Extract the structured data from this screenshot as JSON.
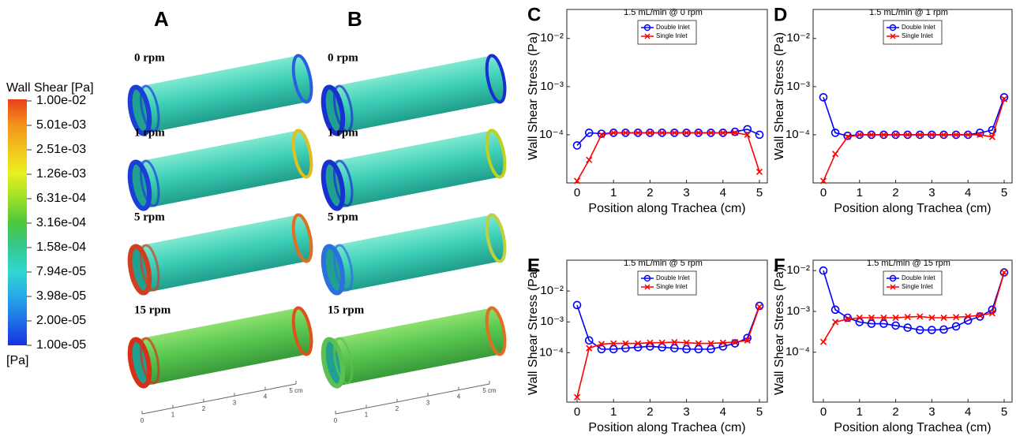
{
  "colorbar": {
    "title": "Wall Shear [Pa]",
    "labels": [
      "1.00e-02",
      "5.01e-03",
      "2.51e-03",
      "1.26e-03",
      "6.31e-04",
      "3.16e-04",
      "1.58e-04",
      "7.94e-05",
      "3.98e-05",
      "2.00e-05",
      "1.00e-05"
    ],
    "unit": "[Pa]"
  },
  "panels": [
    {
      "letter": "A",
      "rows": [
        "0 rpm",
        "1 rpm",
        "5 rpm",
        "15 rpm"
      ],
      "ruler": [
        "0",
        "1",
        "2",
        "3",
        "4",
        "5 cm"
      ]
    },
    {
      "letter": "B",
      "rows": [
        "0 rpm",
        "1 rpm",
        "5 rpm",
        "15 rpm"
      ],
      "ruler": [
        "0",
        "1",
        "2",
        "3",
        "4",
        "5 cm"
      ]
    }
  ],
  "chart_data": [
    {
      "type": "line",
      "panel": "C",
      "title": "1.5 mL/min @ 0 rpm",
      "xlabel": "Position along Trachea (cm)",
      "ylabel": "Wall Shear Stress (Pa)",
      "log_y": true,
      "legend": "upper center",
      "x": [
        0,
        0.33,
        0.67,
        1,
        1.33,
        1.67,
        2,
        2.33,
        2.67,
        3,
        3.33,
        3.67,
        4,
        4.33,
        4.67,
        5
      ],
      "xlim": [
        0,
        5
      ],
      "xticks": [
        0,
        1,
        2,
        3,
        4,
        5
      ],
      "ylim": [
        1e-05,
        0.04
      ],
      "yticks": [
        {
          "value": 0.01,
          "label": "10⁻²"
        },
        {
          "value": 0.001,
          "label": "10⁻³"
        },
        {
          "value": 0.0001,
          "label": "10⁻⁴"
        }
      ],
      "series": [
        {
          "name": "Double Inlet",
          "color": "#0000ff",
          "marker": "circle",
          "values": [
            6e-05,
            0.00011,
            0.000105,
            0.00011,
            0.00011,
            0.00011,
            0.00011,
            0.00011,
            0.00011,
            0.00011,
            0.00011,
            0.00011,
            0.00011,
            0.000115,
            0.00013,
            0.0001
          ]
        },
        {
          "name": "Single Inlet",
          "color": "#ff0000",
          "marker": "x",
          "values": [
            1.1e-05,
            3e-05,
            0.0001,
            0.00011,
            0.00011,
            0.00011,
            0.00011,
            0.00011,
            0.00011,
            0.00011,
            0.00011,
            0.00011,
            0.00011,
            0.00011,
            0.0001,
            1.7e-05
          ]
        }
      ]
    },
    {
      "type": "line",
      "panel": "D",
      "title": "1.5 mL/min @ 1 rpm",
      "xlabel": "Position along Trachea (cm)",
      "ylabel": "Wall Shear Stress (Pa)",
      "log_y": true,
      "legend": "upper center",
      "x": [
        0,
        0.33,
        0.67,
        1,
        1.33,
        1.67,
        2,
        2.33,
        2.67,
        3,
        3.33,
        3.67,
        4,
        4.33,
        4.67,
        5
      ],
      "xlim": [
        0,
        5
      ],
      "xticks": [
        0,
        1,
        2,
        3,
        4,
        5
      ],
      "ylim": [
        1e-05,
        0.04
      ],
      "yticks": [
        {
          "value": 0.01,
          "label": "10⁻²"
        },
        {
          "value": 0.001,
          "label": "10⁻³"
        },
        {
          "value": 0.0001,
          "label": "10⁻⁴"
        }
      ],
      "series": [
        {
          "name": "Double Inlet",
          "color": "#0000ff",
          "marker": "circle",
          "values": [
            0.0006,
            0.00011,
            9.5e-05,
            0.0001,
            0.0001,
            0.0001,
            0.0001,
            0.0001,
            0.0001,
            0.0001,
            0.0001,
            0.0001,
            0.0001,
            0.00011,
            0.000125,
            0.0006
          ]
        },
        {
          "name": "Single Inlet",
          "color": "#ff0000",
          "marker": "x",
          "values": [
            1.1e-05,
            4e-05,
            9e-05,
            0.0001,
            0.0001,
            0.0001,
            0.0001,
            0.0001,
            0.0001,
            0.0001,
            0.0001,
            0.0001,
            0.0001,
            0.0001,
            9e-05,
            0.00055
          ]
        }
      ]
    },
    {
      "type": "line",
      "panel": "E",
      "title": "1.5 mL/min @ 5 rpm",
      "xlabel": "Position along Trachea (cm)",
      "ylabel": "Wall Shear Stress (Pa)",
      "log_y": true,
      "legend": "upper center",
      "x": [
        0,
        0.33,
        0.67,
        1,
        1.33,
        1.67,
        2,
        2.33,
        2.67,
        3,
        3.33,
        3.67,
        4,
        4.33,
        4.67,
        5
      ],
      "xlim": [
        0,
        5
      ],
      "xticks": [
        0,
        1,
        2,
        3,
        4,
        5
      ],
      "ylim": [
        2.5e-06,
        0.1
      ],
      "yticks": [
        {
          "value": 0.01,
          "label": "10⁻²"
        },
        {
          "value": 0.001,
          "label": "10⁻³"
        },
        {
          "value": 0.0001,
          "label": "10⁻⁴"
        }
      ],
      "series": [
        {
          "name": "Double Inlet",
          "color": "#0000ff",
          "marker": "circle",
          "values": [
            0.0035,
            0.00025,
            0.00013,
            0.00013,
            0.00014,
            0.00015,
            0.00016,
            0.00015,
            0.00014,
            0.00013,
            0.00013,
            0.00013,
            0.00016,
            0.0002,
            0.0003,
            0.0033
          ]
        },
        {
          "name": "Single Inlet",
          "color": "#ff0000",
          "marker": "x",
          "values": [
            3.6e-06,
            0.00014,
            0.00019,
            0.0002,
            0.0002,
            0.0002,
            0.00021,
            0.00021,
            0.00022,
            0.00021,
            0.0002,
            0.0002,
            0.00021,
            0.00022,
            0.00025,
            0.0031
          ]
        }
      ]
    },
    {
      "type": "line",
      "panel": "F",
      "title": "1.5 mL/min @ 15 rpm",
      "xlabel": "Position along Trachea (cm)",
      "ylabel": "Wall Shear Stress (Pa)",
      "log_y": true,
      "legend": "upper center",
      "x": [
        0,
        0.33,
        0.67,
        1,
        1.33,
        1.67,
        2,
        2.33,
        2.67,
        3,
        3.33,
        3.67,
        4,
        4.33,
        4.67,
        5
      ],
      "xlim": [
        0,
        5
      ],
      "xticks": [
        0,
        1,
        2,
        3,
        4,
        5
      ],
      "ylim": [
        6e-06,
        0.018
      ],
      "yticks": [
        {
          "value": 0.01,
          "label": "10⁻²"
        },
        {
          "value": 0.001,
          "label": "10⁻³"
        },
        {
          "value": 0.0001,
          "label": "10⁻⁴"
        }
      ],
      "series": [
        {
          "name": "Double Inlet",
          "color": "#0000ff",
          "marker": "circle",
          "values": [
            0.01,
            0.0011,
            0.0007,
            0.00055,
            0.0005,
            0.0005,
            0.00045,
            0.0004,
            0.00035,
            0.00035,
            0.00036,
            0.00043,
            0.0006,
            0.00075,
            0.0011,
            0.009
          ]
        },
        {
          "name": "Single Inlet",
          "color": "#ff0000",
          "marker": "x",
          "values": [
            0.00018,
            0.00055,
            0.00065,
            0.0007,
            0.0007,
            0.0007,
            0.0007,
            0.00073,
            0.00075,
            0.0007,
            0.0007,
            0.00072,
            0.00075,
            0.0008,
            0.0009,
            0.009
          ]
        }
      ]
    }
  ]
}
